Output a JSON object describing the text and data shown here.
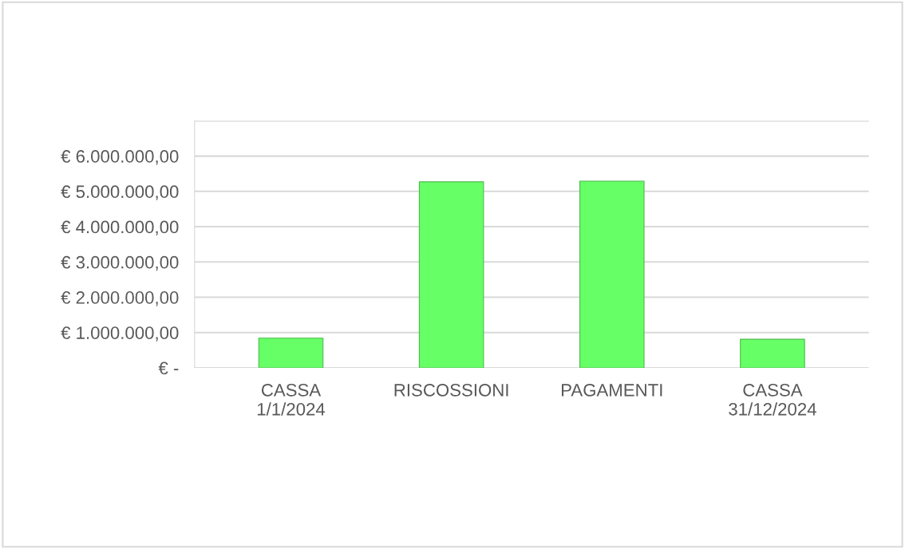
{
  "chart_data": {
    "type": "bar",
    "categories": [
      "CASSA\n1/1/2024",
      "RISCOSSIONI",
      "PAGAMENTI",
      "CASSA\n31/12/2024"
    ],
    "values": [
      840000,
      5270000,
      5290000,
      810000
    ],
    "color": "#66ff66",
    "ylim": [
      0,
      7000000
    ],
    "yticks": [
      {
        "value": 0,
        "label": "€ -"
      },
      {
        "value": 1000000,
        "label": "€ 1.000.000,00"
      },
      {
        "value": 2000000,
        "label": "€ 2.000.000,00"
      },
      {
        "value": 3000000,
        "label": "€ 3.000.000,00"
      },
      {
        "value": 4000000,
        "label": "€ 4.000.000,00"
      },
      {
        "value": 5000000,
        "label": "€ 5.000.000,00"
      },
      {
        "value": 6000000,
        "label": "€ 6.000.000,00"
      },
      {
        "value": 7000000,
        "label": null
      }
    ],
    "grid": "y"
  }
}
